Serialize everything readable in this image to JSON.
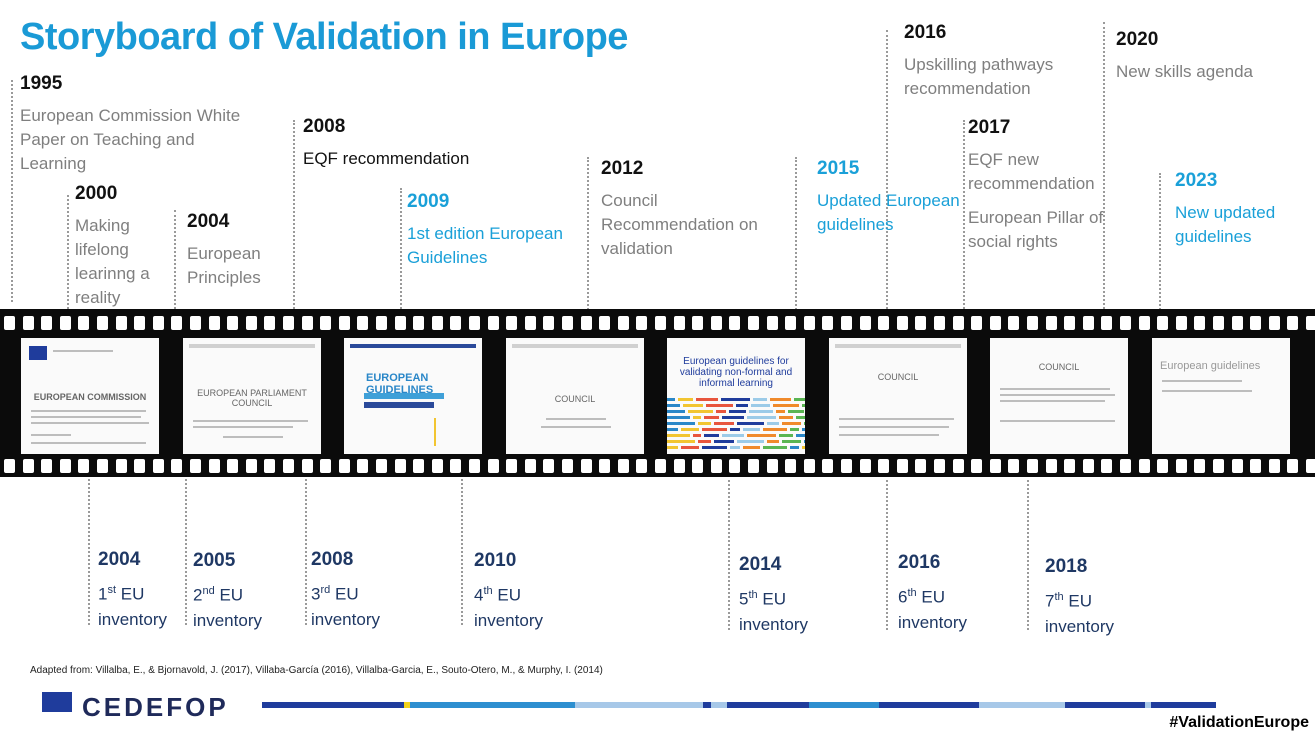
{
  "title": "Storyboard of Validation in Europe",
  "top_events": [
    {
      "year": "1995",
      "text": "European Commission White Paper on Teaching and Learning",
      "style": "grey"
    },
    {
      "year": "2000",
      "text": "Making lifelong learinng a reality",
      "style": "grey"
    },
    {
      "year": "2004",
      "text": "European Principles",
      "style": "grey"
    },
    {
      "year": "2008",
      "text": "EQF recommendation",
      "style": "dark"
    },
    {
      "year": "2009",
      "text": "1st edition European Guidelines",
      "style": "blue"
    },
    {
      "year": "2012",
      "text": "Council Recommendation on validation",
      "style": "grey"
    },
    {
      "year": "2015",
      "text": "Updated European guidelines",
      "style": "blue"
    },
    {
      "year": "2016",
      "text": "Upskilling pathways recommendation",
      "style": "grey"
    },
    {
      "year": "2017",
      "text": "EQF new recommendation",
      "text2": "European Pillar of social rights",
      "style": "grey"
    },
    {
      "year": "2020",
      "text": "New skills agenda",
      "style": "grey"
    },
    {
      "year": "2023",
      "text": "New updated guidelines",
      "style": "blue"
    }
  ],
  "inventories": [
    {
      "year": "2004",
      "ord": "1",
      "sup": "st",
      "label1": "EU",
      "label2": "inventory"
    },
    {
      "year": "2005",
      "ord": "2",
      "sup": "nd",
      "label1": "EU",
      "label2": "inventory"
    },
    {
      "year": "2008",
      "ord": "3",
      "sup": "rd",
      "label1": "EU",
      "label2": "inventory"
    },
    {
      "year": "2010",
      "ord": "4",
      "sup": "th",
      "label1": "EU",
      "label2": "inventory"
    },
    {
      "year": "2014",
      "ord": "5",
      "sup": "th",
      "label1": "EU",
      "label2": "inventory"
    },
    {
      "year": "2016",
      "ord": "6",
      "sup": "th",
      "label1": "EU",
      "label2": "inventory"
    },
    {
      "year": "2018",
      "ord": "7",
      "sup": "th",
      "label1": "EU",
      "label2": "inventory"
    }
  ],
  "frames": [
    {
      "caption": "EUROPEAN COMMISSION"
    },
    {
      "caption": "EUROPEAN PARLIAMENT COUNCIL"
    },
    {
      "caption": "EUROPEAN GUIDELINES"
    },
    {
      "caption": "COUNCIL"
    },
    {
      "caption": "European guidelines for validating non-formal and informal learning"
    },
    {
      "caption": "COUNCIL"
    },
    {
      "caption": "COUNCIL"
    },
    {
      "caption": "European guidelines"
    }
  ],
  "source": "Adapted from: Villalba, E., & Bjornavold, J. (2017), Villaba-García (2016), Villalba-Garcia, E., Souto-Otero, M., & Murphy, I. (2014)",
  "logo": "CEDEFOP",
  "hashtag": "#ValidationEurope",
  "colors": {
    "title": "#1a9ad6",
    "blue_event": "#1aa0d8",
    "inventory": "#1f3864"
  }
}
